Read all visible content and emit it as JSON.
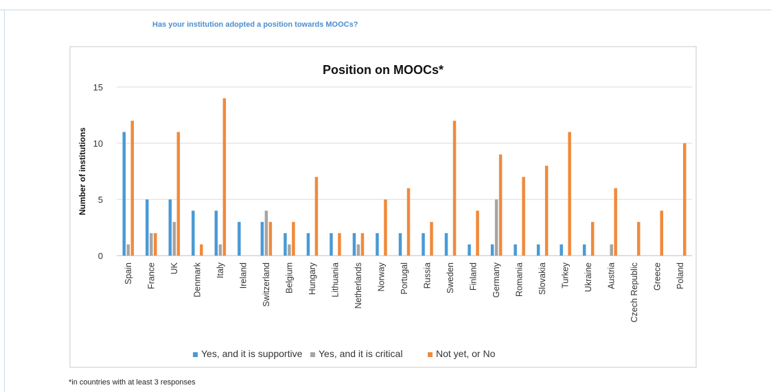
{
  "header": {
    "question": "Has your institution adopted a position towards MOOCs?"
  },
  "footnote": "*in countries with at least 3 responses",
  "colors": {
    "supportive": "#4a9ad4",
    "critical": "#a5a5a5",
    "no": "#f08a3c",
    "grid": "#d9d9d9",
    "axis": "#bfbfbf"
  },
  "chart_data": {
    "type": "bar",
    "title": "Position on MOOCs*",
    "ylabel": "Number of institutions",
    "xlabel": "",
    "ylim": [
      0,
      15
    ],
    "yticks": [
      "0",
      "5",
      "10",
      "15"
    ],
    "grid": true,
    "legend_position": "bottom",
    "categories": [
      "Spain",
      "France",
      "UK",
      "Denmark",
      "Italy",
      "Ireland",
      "Switzerland",
      "Belgium",
      "Hungary",
      "Lithuania",
      "Netherlands",
      "Norway",
      "Portugal",
      "Russia",
      "Sweden",
      "Finland",
      "Germany",
      "Romania",
      "Slovakia",
      "Turkey",
      "Ukraine",
      "Austria",
      "Czech Republic",
      "Greece",
      "Poland"
    ],
    "series": [
      {
        "name": "Yes, and it is supportive",
        "color": "#4a9ad4",
        "values": [
          11,
          5,
          5,
          4,
          4,
          3,
          3,
          2,
          2,
          2,
          2,
          2,
          2,
          2,
          2,
          1,
          1,
          1,
          1,
          1,
          1,
          0,
          0,
          0,
          0
        ]
      },
      {
        "name": "Yes, and it is critical",
        "color": "#a5a5a5",
        "values": [
          1,
          2,
          3,
          0,
          1,
          0,
          4,
          1,
          0,
          0,
          1,
          0,
          0,
          0,
          0,
          0,
          5,
          0,
          0,
          0,
          0,
          1,
          0,
          0,
          0
        ]
      },
      {
        "name": "Not yet, or No",
        "color": "#f08a3c",
        "values": [
          12,
          2,
          11,
          1,
          14,
          0,
          3,
          3,
          7,
          2,
          2,
          5,
          6,
          3,
          12,
          4,
          9,
          7,
          8,
          11,
          3,
          6,
          3,
          4,
          10
        ]
      }
    ]
  }
}
